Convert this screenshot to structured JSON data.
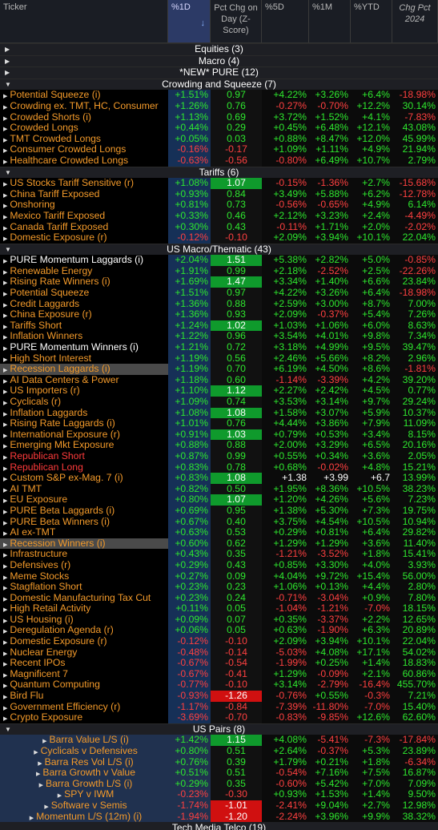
{
  "columns": {
    "ticker": "Ticker",
    "pct1d": "%1D",
    "z": "Pct Chg on Day (Z-Score)",
    "pct5d": "%5D",
    "pct1m": "%1M",
    "ytd": "%YTD",
    "chg2024": "Chg Pct 2024",
    "sort_arrow": "↓"
  },
  "collapsed_groups": [
    "Equities (3)",
    "Macro (4)",
    "*NEW* PURE (12)"
  ],
  "groups": [
    {
      "title": "Crowding and Squeeze (7)",
      "rows": [
        {
          "n": "Potential Squeeze (i)",
          "d1": "+1.51%",
          "z": "0.97",
          "d5": "+4.22%",
          "m1": "+3.26%",
          "ytd": "+6.4%",
          "y24": "-18.98%"
        },
        {
          "n": "Crowding ex. TMT, HC, Consumer",
          "d1": "+1.26%",
          "z": "0.76",
          "d5": "-0.27%",
          "m1": "-0.70%",
          "ytd": "+12.2%",
          "y24": "30.14%"
        },
        {
          "n": "Crowded Shorts (i)",
          "d1": "+1.13%",
          "z": "0.69",
          "d5": "+3.72%",
          "m1": "+1.52%",
          "ytd": "+4.1%",
          "y24": "-7.83%"
        },
        {
          "n": "Crowded Longs",
          "d1": "+0.44%",
          "z": "0.29",
          "d5": "+0.45%",
          "m1": "+6.48%",
          "ytd": "+12.1%",
          "y24": "43.08%"
        },
        {
          "n": "TMT Crowded Longs",
          "d1": "+0.05%",
          "z": "0.03",
          "d5": "+0.88%",
          "m1": "+8.47%",
          "ytd": "+12.0%",
          "y24": "45.99%"
        },
        {
          "n": "Consumer Crowded Longs",
          "d1": "-0.16%",
          "z": "-0.17",
          "d5": "+1.09%",
          "m1": "+1.11%",
          "ytd": "+4.9%",
          "y24": "21.94%"
        },
        {
          "n": "Healthcare Crowded Longs",
          "d1": "-0.63%",
          "z": "-0.56",
          "d5": "-0.80%",
          "m1": "+6.49%",
          "ytd": "+10.7%",
          "y24": "2.79%"
        }
      ]
    },
    {
      "title": "Tariffs (6)",
      "rows": [
        {
          "n": "US Stocks Tariff Sensitive (r)",
          "d1": "+1.08%",
          "z": "1.07",
          "d5": "-0.15%",
          "m1": "-1.36%",
          "ytd": "+2.7%",
          "y24": "-15.68%",
          "zc": "g"
        },
        {
          "n": "China Tariff Exposed",
          "d1": "+0.93%",
          "z": "0.84",
          "d5": "+3.49%",
          "m1": "+5.88%",
          "ytd": "+6.2%",
          "y24": "-12.78%"
        },
        {
          "n": "Onshoring",
          "d1": "+0.81%",
          "z": "0.73",
          "d5": "-0.56%",
          "m1": "-0.65%",
          "ytd": "+4.9%",
          "y24": "6.14%"
        },
        {
          "n": "Mexico Tariff Exposed",
          "d1": "+0.33%",
          "z": "0.46",
          "d5": "+2.12%",
          "m1": "+3.23%",
          "ytd": "+2.4%",
          "y24": "-4.49%"
        },
        {
          "n": "Canada Tariff Exposed",
          "d1": "+0.30%",
          "z": "0.43",
          "d5": "-0.11%",
          "m1": "+1.71%",
          "ytd": "+2.0%",
          "y24": "-2.02%"
        },
        {
          "n": "Domestic Exposure (r)",
          "d1": "-0.12%",
          "z": "-0.10",
          "d5": "+2.09%",
          "m1": "+3.94%",
          "ytd": "+10.1%",
          "y24": "22.04%"
        }
      ]
    },
    {
      "title": "US Macro/Thematic (43)",
      "rows": [
        {
          "n": "PURE Momentum Laggards (i)",
          "d1": "+2.04%",
          "z": "1.51",
          "d5": "+5.38%",
          "m1": "+2.82%",
          "ytd": "+5.0%",
          "y24": "-0.85%",
          "zc": "g",
          "nc": "w"
        },
        {
          "n": "Renewable Energy",
          "d1": "+1.91%",
          "z": "0.99",
          "d5": "+2.18%",
          "m1": "-2.52%",
          "ytd": "+2.5%",
          "y24": "-22.26%"
        },
        {
          "n": "Rising Rate Winners (i)",
          "d1": "+1.69%",
          "z": "1.47",
          "d5": "+3.34%",
          "m1": "+1.40%",
          "ytd": "+6.6%",
          "y24": "23.84%",
          "zc": "g"
        },
        {
          "n": "Potential Squeeze",
          "d1": "+1.51%",
          "z": "0.97",
          "d5": "+4.22%",
          "m1": "+3.26%",
          "ytd": "+6.4%",
          "y24": "-18.98%"
        },
        {
          "n": "Credit Laggards",
          "d1": "+1.36%",
          "z": "0.88",
          "d5": "+2.59%",
          "m1": "+3.00%",
          "ytd": "+8.7%",
          "y24": "7.00%"
        },
        {
          "n": "China Exposure (r)",
          "d1": "+1.36%",
          "z": "0.93",
          "d5": "+2.09%",
          "m1": "-0.37%",
          "ytd": "+5.4%",
          "y24": "7.26%"
        },
        {
          "n": "Tariffs Short",
          "d1": "+1.24%",
          "z": "1.02",
          "d5": "+1.03%",
          "m1": "+1.06%",
          "ytd": "+6.0%",
          "y24": "8.63%",
          "zc": "g"
        },
        {
          "n": "Inflation Winners",
          "d1": "+1.22%",
          "z": "0.96",
          "d5": "+3.54%",
          "m1": "+4.01%",
          "ytd": "+9.8%",
          "y24": "7.34%"
        },
        {
          "n": "PURE Momentum Winners (i)",
          "d1": "+1.21%",
          "z": "0.72",
          "d5": "+3.18%",
          "m1": "+4.99%",
          "ytd": "+9.5%",
          "y24": "39.47%",
          "nc": "w"
        },
        {
          "n": "High Short Interest",
          "d1": "+1.19%",
          "z": "0.56",
          "d5": "+2.46%",
          "m1": "+5.66%",
          "ytd": "+8.2%",
          "y24": "2.96%"
        },
        {
          "n": "Recession Laggards (i)",
          "d1": "+1.19%",
          "z": "0.70",
          "d5": "+6.19%",
          "m1": "+4.50%",
          "ytd": "+8.6%",
          "y24": "-1.81%",
          "sel": true
        },
        {
          "n": "AI Data Centers & Power",
          "d1": "+1.18%",
          "z": "0.60",
          "d5": "-1.14%",
          "m1": "-3.39%",
          "ytd": "+4.2%",
          "y24": "39.20%"
        },
        {
          "n": "US Importers (r)",
          "d1": "+1.10%",
          "z": "1.12",
          "d5": "+2.27%",
          "m1": "+2.42%",
          "ytd": "+4.5%",
          "y24": "0.77%",
          "zc": "g"
        },
        {
          "n": "Cyclicals (r)",
          "d1": "+1.09%",
          "z": "0.74",
          "d5": "+3.53%",
          "m1": "+3.14%",
          "ytd": "+9.7%",
          "y24": "29.24%"
        },
        {
          "n": "Inflation Laggards",
          "d1": "+1.08%",
          "z": "1.08",
          "d5": "+1.58%",
          "m1": "+3.07%",
          "ytd": "+5.9%",
          "y24": "10.37%",
          "zc": "g"
        },
        {
          "n": "Rising Rate Laggards (i)",
          "d1": "+1.01%",
          "z": "0.76",
          "d5": "+4.44%",
          "m1": "+3.86%",
          "ytd": "+7.9%",
          "y24": "11.09%"
        },
        {
          "n": "International Exposure (r)",
          "d1": "+0.91%",
          "z": "1.03",
          "d5": "+0.79%",
          "m1": "+0.53%",
          "ytd": "+3.4%",
          "y24": "8.15%",
          "zc": "g"
        },
        {
          "n": "Emerging Mkt Exposure",
          "d1": "+0.88%",
          "z": "0.88",
          "d5": "+2.00%",
          "m1": "+3.29%",
          "ytd": "+6.5%",
          "y24": "20.16%"
        },
        {
          "n": "Republican Short",
          "d1": "+0.87%",
          "z": "0.99",
          "d5": "+0.55%",
          "m1": "+0.34%",
          "ytd": "+3.6%",
          "y24": "2.05%",
          "nc": "r"
        },
        {
          "n": "Republican Long",
          "d1": "+0.83%",
          "z": "0.78",
          "d5": "+0.68%",
          "m1": "-0.02%",
          "ytd": "+4.8%",
          "y24": "15.21%",
          "nc": "r"
        },
        {
          "n": "Custom S&P ex-Mag. 7 (i)",
          "d1": "+0.83%",
          "z": "1.08",
          "d5": "+1.38",
          "m1": "+3.99",
          "ytd": "+6.7",
          "y24": "13.99%",
          "zc": "g",
          "wv": true
        },
        {
          "n": "AI TMT",
          "d1": "+0.82%",
          "z": "0.50",
          "d5": "+1.95%",
          "m1": "+8.36%",
          "ytd": "+10.5%",
          "y24": "38.23%"
        },
        {
          "n": "EU Exposure",
          "d1": "+0.80%",
          "z": "1.07",
          "d5": "+1.20%",
          "m1": "+4.26%",
          "ytd": "+5.6%",
          "y24": "7.23%",
          "zc": "g"
        },
        {
          "n": "PURE Beta Laggards (i)",
          "d1": "+0.69%",
          "z": "0.95",
          "d5": "+1.38%",
          "m1": "+5.30%",
          "ytd": "+7.3%",
          "y24": "19.75%"
        },
        {
          "n": "PURE Beta Winners (i)",
          "d1": "+0.67%",
          "z": "0.40",
          "d5": "+3.75%",
          "m1": "+4.54%",
          "ytd": "+10.5%",
          "y24": "10.94%"
        },
        {
          "n": "AI ex-TMT",
          "d1": "+0.63%",
          "z": "0.53",
          "d5": "+0.29%",
          "m1": "+0.81%",
          "ytd": "+6.4%",
          "y24": "29.82%"
        },
        {
          "n": "Recession Winners (i)",
          "d1": "+0.60%",
          "z": "0.62",
          "d5": "+1.29%",
          "m1": "+1.29%",
          "ytd": "+3.6%",
          "y24": "11.40%",
          "sel": true
        },
        {
          "n": "Infrastructure",
          "d1": "+0.43%",
          "z": "0.35",
          "d5": "-1.21%",
          "m1": "-3.52%",
          "ytd": "+1.8%",
          "y24": "15.41%"
        },
        {
          "n": "Defensives (r)",
          "d1": "+0.29%",
          "z": "0.43",
          "d5": "+0.85%",
          "m1": "+3.30%",
          "ytd": "+4.0%",
          "y24": "3.93%"
        },
        {
          "n": "Meme Stocks",
          "d1": "+0.27%",
          "z": "0.09",
          "d5": "+4.04%",
          "m1": "+9.72%",
          "ytd": "+15.4%",
          "y24": "56.00%"
        },
        {
          "n": "Stagflation Short",
          "d1": "+0.23%",
          "z": "0.23",
          "d5": "+1.06%",
          "m1": "+0.13%",
          "ytd": "+4.4%",
          "y24": "2.80%"
        },
        {
          "n": "Domestic Manufacturing Tax Cut",
          "d1": "+0.23%",
          "z": "0.24",
          "d5": "-0.71%",
          "m1": "-3.04%",
          "ytd": "+0.9%",
          "y24": "7.80%"
        },
        {
          "n": "High Retail Activity",
          "d1": "+0.11%",
          "z": "0.05",
          "d5": "-1.04%",
          "m1": "-1.21%",
          "ytd": "-7.0%",
          "y24": "18.15%"
        },
        {
          "n": "US Housing (i)",
          "d1": "+0.09%",
          "z": "0.07",
          "d5": "+0.35%",
          "m1": "-3.37%",
          "ytd": "+2.2%",
          "y24": "12.65%"
        },
        {
          "n": "Deregulation Agenda (r)",
          "d1": "+0.06%",
          "z": "0.05",
          "d5": "+0.63%",
          "m1": "-1.90%",
          "ytd": "+6.3%",
          "y24": "20.89%"
        },
        {
          "n": "Domestic Exposure (r)",
          "d1": "-0.12%",
          "z": "-0.10",
          "d5": "+2.09%",
          "m1": "+3.94%",
          "ytd": "+10.1%",
          "y24": "22.04%"
        },
        {
          "n": "Nuclear Energy",
          "d1": "-0.48%",
          "z": "-0.14",
          "d5": "-5.03%",
          "m1": "+4.08%",
          "ytd": "+17.1%",
          "y24": "54.02%"
        },
        {
          "n": "Recent IPOs",
          "d1": "-0.67%",
          "z": "-0.54",
          "d5": "-1.99%",
          "m1": "+0.25%",
          "ytd": "+1.4%",
          "y24": "18.83%"
        },
        {
          "n": "Magnificent 7",
          "d1": "-0.67%",
          "z": "-0.41",
          "d5": "+1.29%",
          "m1": "-0.09%",
          "ytd": "+2.1%",
          "y24": "60.86%"
        },
        {
          "n": "Quantum Computing",
          "d1": "-0.77%",
          "z": "-0.10",
          "d5": "+3.14%",
          "m1": "-2.79%",
          "ytd": "-16.4%",
          "y24": "455.70%"
        },
        {
          "n": "Bird Flu",
          "d1": "-0.93%",
          "z": "-1.26",
          "d5": "-0.76%",
          "m1": "+0.55%",
          "ytd": "-0.3%",
          "y24": "7.21%",
          "zc": "r"
        },
        {
          "n": "Government Efficiency (r)",
          "d1": "-1.17%",
          "z": "-0.84",
          "d5": "-7.39%",
          "m1": "-11.80%",
          "ytd": "-7.0%",
          "y24": "15.40%"
        },
        {
          "n": "Crypto Exposure",
          "d1": "-3.69%",
          "z": "-0.70",
          "d5": "-0.83%",
          "m1": "-9.85%",
          "ytd": "+12.6%",
          "y24": "62.60%"
        }
      ]
    },
    {
      "title": "US Pairs (8)",
      "pairs": true,
      "rows": [
        {
          "n": "Barra Value L/S (i)",
          "d1": "+1.42%",
          "z": "1.15",
          "d5": "+4.08%",
          "m1": "-5.41%",
          "ytd": "-7.3%",
          "y24": "-17.84%",
          "zc": "g"
        },
        {
          "n": "Cyclicals v Defensives",
          "d1": "+0.80%",
          "z": "0.51",
          "d5": "+2.64%",
          "m1": "-0.37%",
          "ytd": "+5.3%",
          "y24": "23.89%"
        },
        {
          "n": "Barra Res Vol L/S (i)",
          "d1": "+0.76%",
          "z": "0.39",
          "d5": "+1.79%",
          "m1": "+0.21%",
          "ytd": "+1.8%",
          "y24": "-6.34%"
        },
        {
          "n": "Barra Growth v Value",
          "d1": "+0.51%",
          "z": "0.51",
          "d5": "-0.54%",
          "m1": "+7.16%",
          "ytd": "+7.5%",
          "y24": "16.87%"
        },
        {
          "n": "Barra Growth L/S (i)",
          "d1": "+0.29%",
          "z": "0.35",
          "d5": "-0.60%",
          "m1": "+5.42%",
          "ytd": "+7.0%",
          "y24": "7.09%"
        },
        {
          "n": "SPY v IWM",
          "d1": "-0.23%",
          "z": "-0.30",
          "d5": "+0.93%",
          "m1": "+1.53%",
          "ytd": "+1.4%",
          "y24": "9.50%"
        },
        {
          "n": "Software v Semis",
          "d1": "-1.74%",
          "z": "-1.01",
          "d5": "-2.41%",
          "m1": "+9.04%",
          "ytd": "+2.7%",
          "y24": "12.98%",
          "zc": "r"
        },
        {
          "n": "Momentum L/S (12m) (i)",
          "d1": "-1.94%",
          "z": "-1.20",
          "d5": "-2.24%",
          "m1": "+3.96%",
          "ytd": "+9.9%",
          "y24": "38.32%",
          "zc": "r"
        }
      ]
    }
  ],
  "bottom_group": "Tech Media Telco (19)"
}
